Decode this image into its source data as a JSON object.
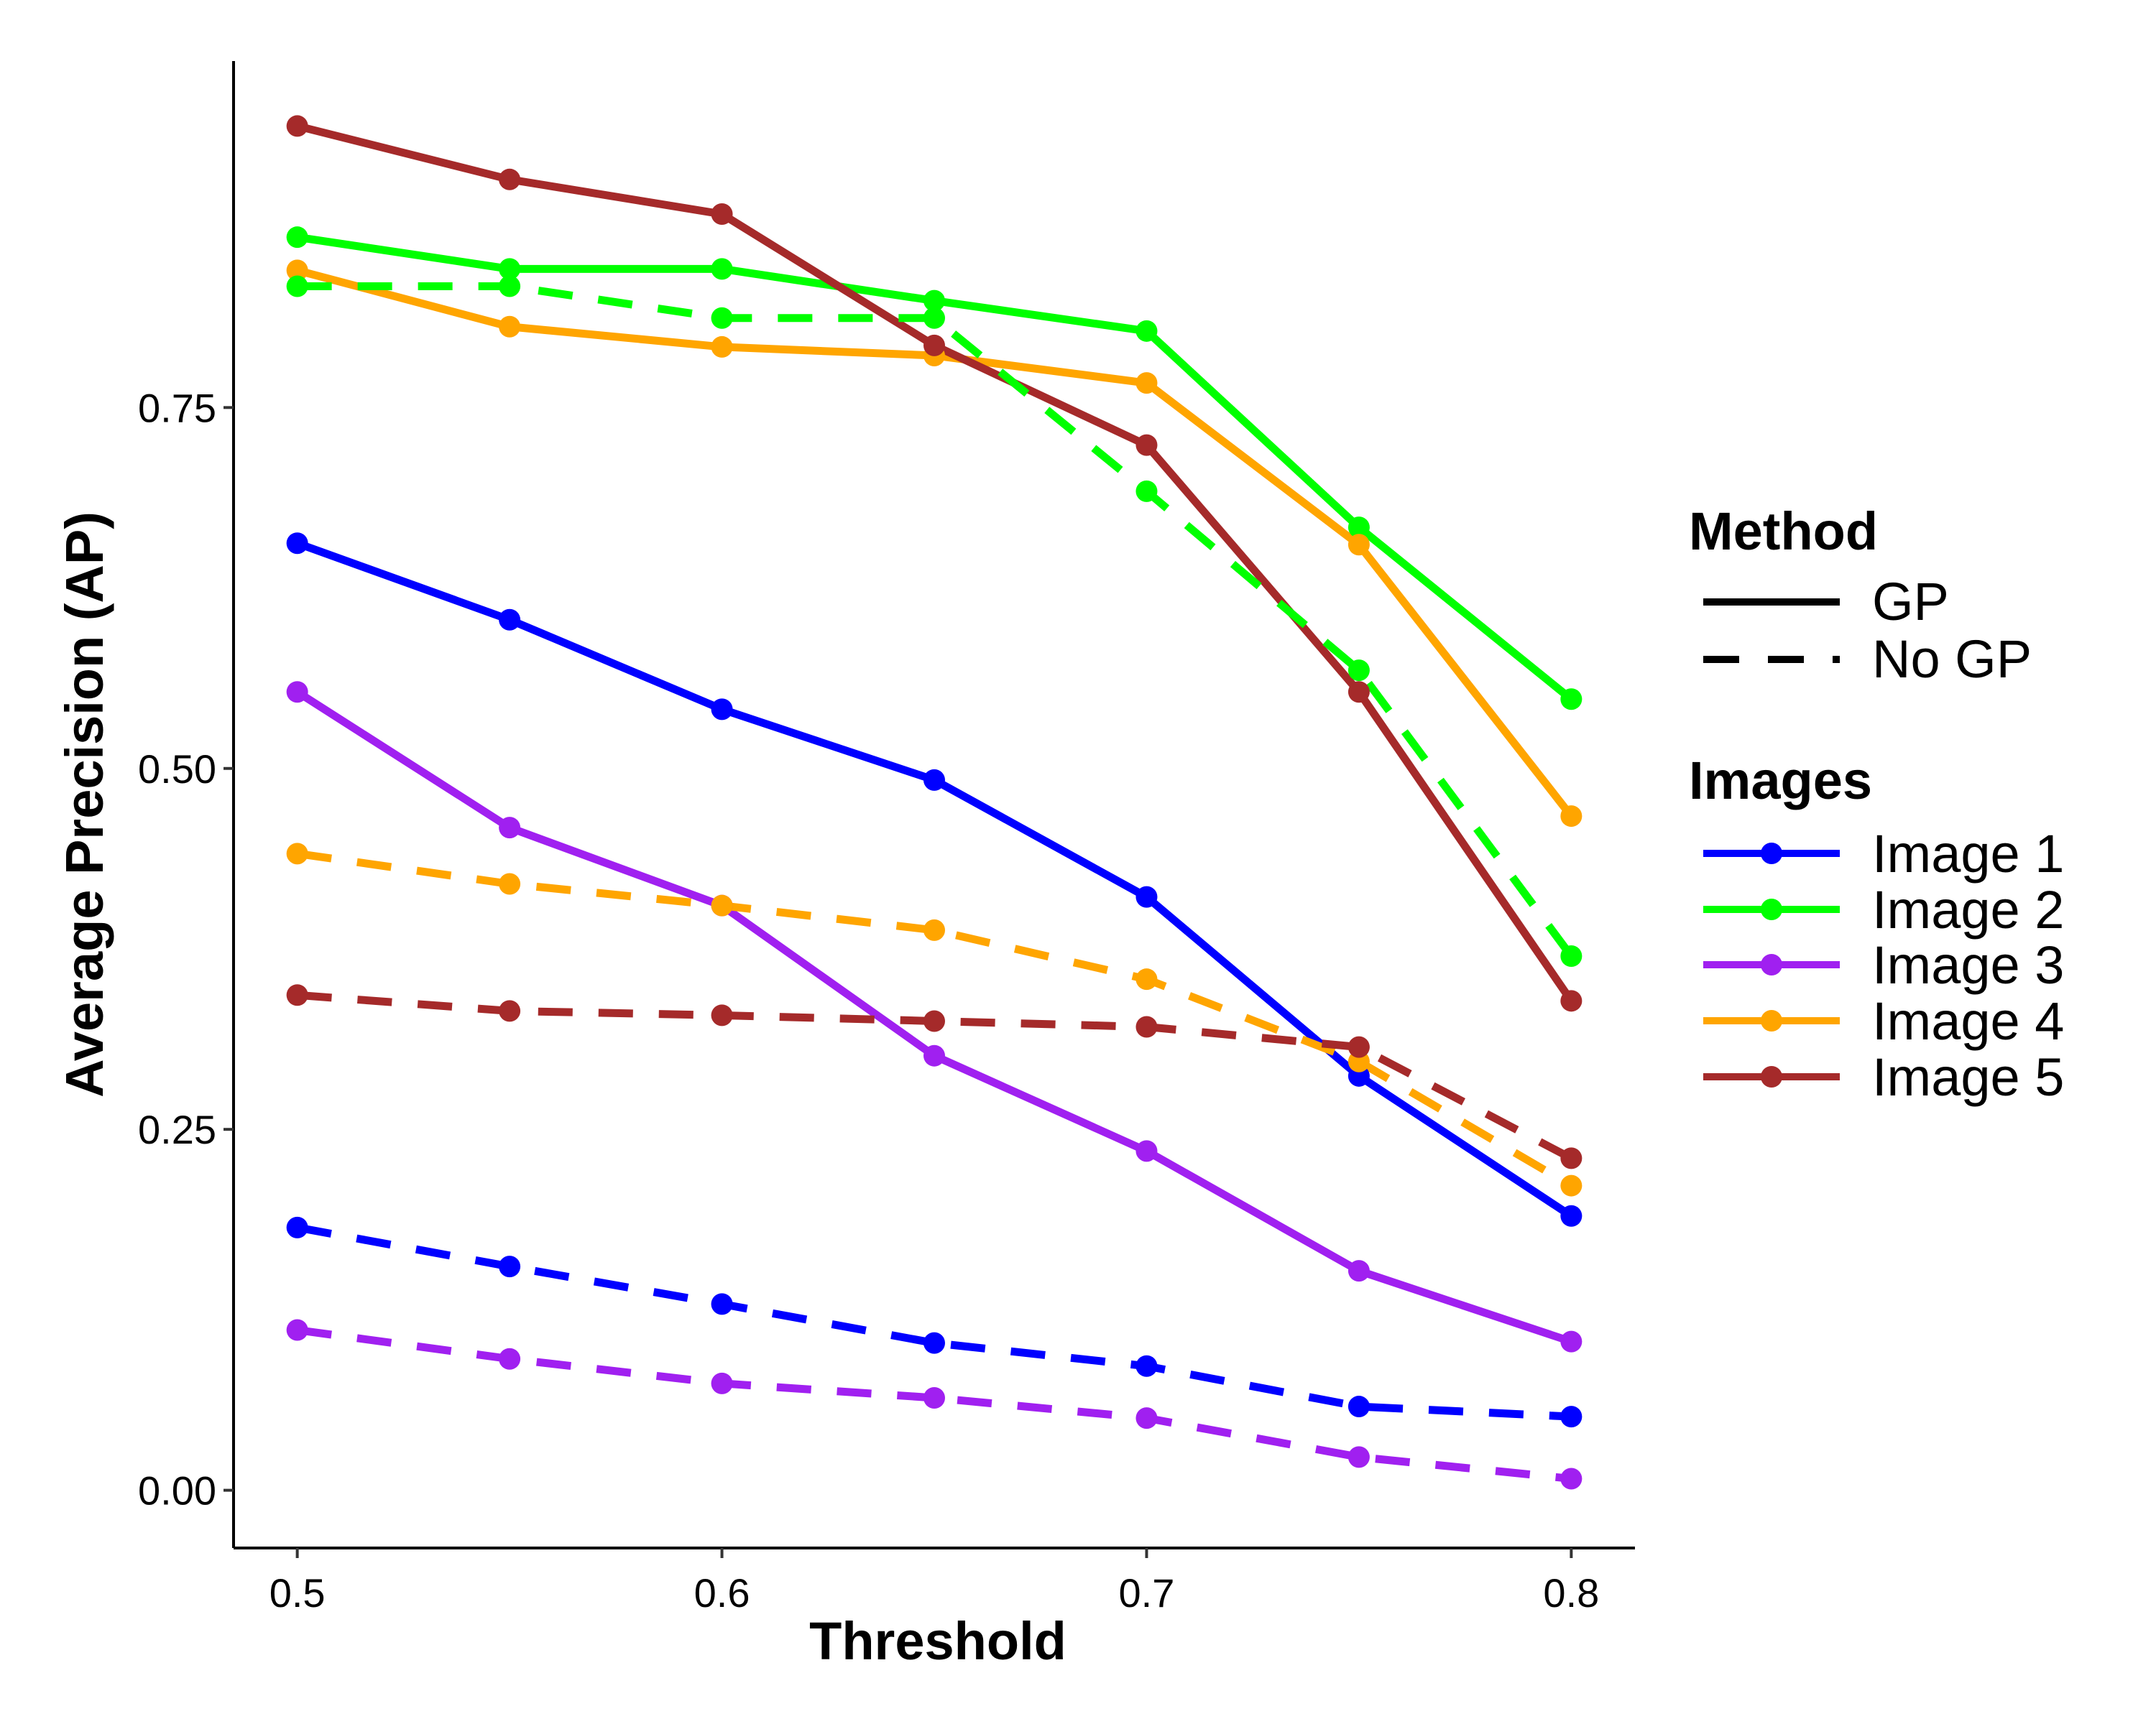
{
  "chart_data": {
    "type": "line",
    "xlabel": "Threshold",
    "ylabel": "Average Precision (AP)",
    "xlim": [
      0.485,
      0.815
    ],
    "ylim": [
      -0.04,
      0.99
    ],
    "x": [
      0.5,
      0.55,
      0.6,
      0.65,
      0.7,
      0.75,
      0.8
    ],
    "x_ticks": [
      0.5,
      0.6,
      0.7,
      0.8
    ],
    "x_tick_labels": [
      "0.5",
      "0.6",
      "0.7",
      "0.8"
    ],
    "y_ticks": [
      0.0,
      0.25,
      0.5,
      0.75
    ],
    "y_tick_labels": [
      "0.00",
      "0.25",
      "0.50",
      "0.75"
    ],
    "grid": false,
    "legend_placement": "right",
    "legend": {
      "method_title": "Method",
      "methods": [
        {
          "label": "GP",
          "linetype": "solid"
        },
        {
          "label": "No GP",
          "linetype": "dashed"
        }
      ],
      "images_title": "Images",
      "images": [
        {
          "label": "Image 1",
          "color": "#0000ff"
        },
        {
          "label": "Image 2",
          "color": "#00ff00"
        },
        {
          "label": "Image 3",
          "color": "#a020f0"
        },
        {
          "label": "Image 4",
          "color": "#ffa500"
        },
        {
          "label": "Image 5",
          "color": "#a52a2a"
        }
      ]
    },
    "series": [
      {
        "image": "Image 1",
        "method": "GP",
        "color": "#0000ff",
        "linetype": "solid",
        "values": [
          0.656,
          0.603,
          0.541,
          0.492,
          0.411,
          0.287,
          0.19
        ]
      },
      {
        "image": "Image 2",
        "method": "GP",
        "color": "#00ff00",
        "linetype": "solid",
        "values": [
          0.868,
          0.846,
          0.846,
          0.824,
          0.803,
          0.667,
          0.548
        ]
      },
      {
        "image": "Image 3",
        "method": "GP",
        "color": "#a020f0",
        "linetype": "solid",
        "values": [
          0.553,
          0.459,
          0.405,
          0.301,
          0.235,
          0.152,
          0.103
        ]
      },
      {
        "image": "Image 4",
        "method": "GP",
        "color": "#ffa500",
        "linetype": "solid",
        "values": [
          0.845,
          0.806,
          0.792,
          0.786,
          0.767,
          0.655,
          0.467
        ]
      },
      {
        "image": "Image 5",
        "method": "GP",
        "color": "#a52a2a",
        "linetype": "solid",
        "values": [
          0.945,
          0.908,
          0.884,
          0.793,
          0.724,
          0.553,
          0.339
        ]
      },
      {
        "image": "Image 1",
        "method": "No GP",
        "color": "#0000ff",
        "linetype": "dashed",
        "values": [
          0.182,
          0.155,
          0.129,
          0.102,
          0.086,
          0.058,
          0.051
        ]
      },
      {
        "image": "Image 2",
        "method": "No GP",
        "color": "#00ff00",
        "linetype": "dashed",
        "values": [
          0.834,
          0.834,
          0.812,
          0.812,
          0.692,
          0.568,
          0.37
        ]
      },
      {
        "image": "Image 3",
        "method": "No GP",
        "color": "#a020f0",
        "linetype": "dashed",
        "values": [
          0.111,
          0.091,
          0.074,
          0.064,
          0.05,
          0.023,
          0.008
        ]
      },
      {
        "image": "Image 4",
        "method": "No GP",
        "color": "#ffa500",
        "linetype": "dashed",
        "values": [
          0.441,
          0.42,
          0.405,
          0.388,
          0.354,
          0.297,
          0.211
        ]
      },
      {
        "image": "Image 5",
        "method": "No GP",
        "color": "#a52a2a",
        "linetype": "dashed",
        "values": [
          0.343,
          0.332,
          0.329,
          0.325,
          0.321,
          0.307,
          0.23
        ]
      }
    ]
  }
}
